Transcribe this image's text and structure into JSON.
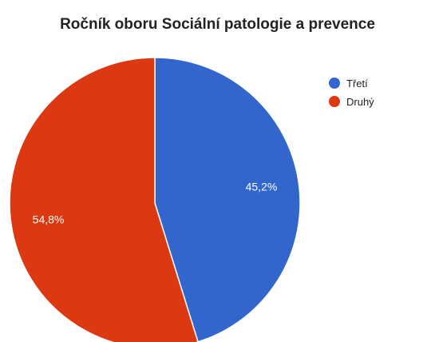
{
  "chart_data": {
    "type": "pie",
    "title": "Ročník oboru Sociální patologie a prevence",
    "slices": [
      {
        "label": "Třetí",
        "value": 45.2,
        "display": "45,2%",
        "color": "#3366cc"
      },
      {
        "label": "Druhý",
        "value": 54.8,
        "display": "54,8%",
        "color": "#dc3912"
      }
    ],
    "legend_position": "right"
  }
}
